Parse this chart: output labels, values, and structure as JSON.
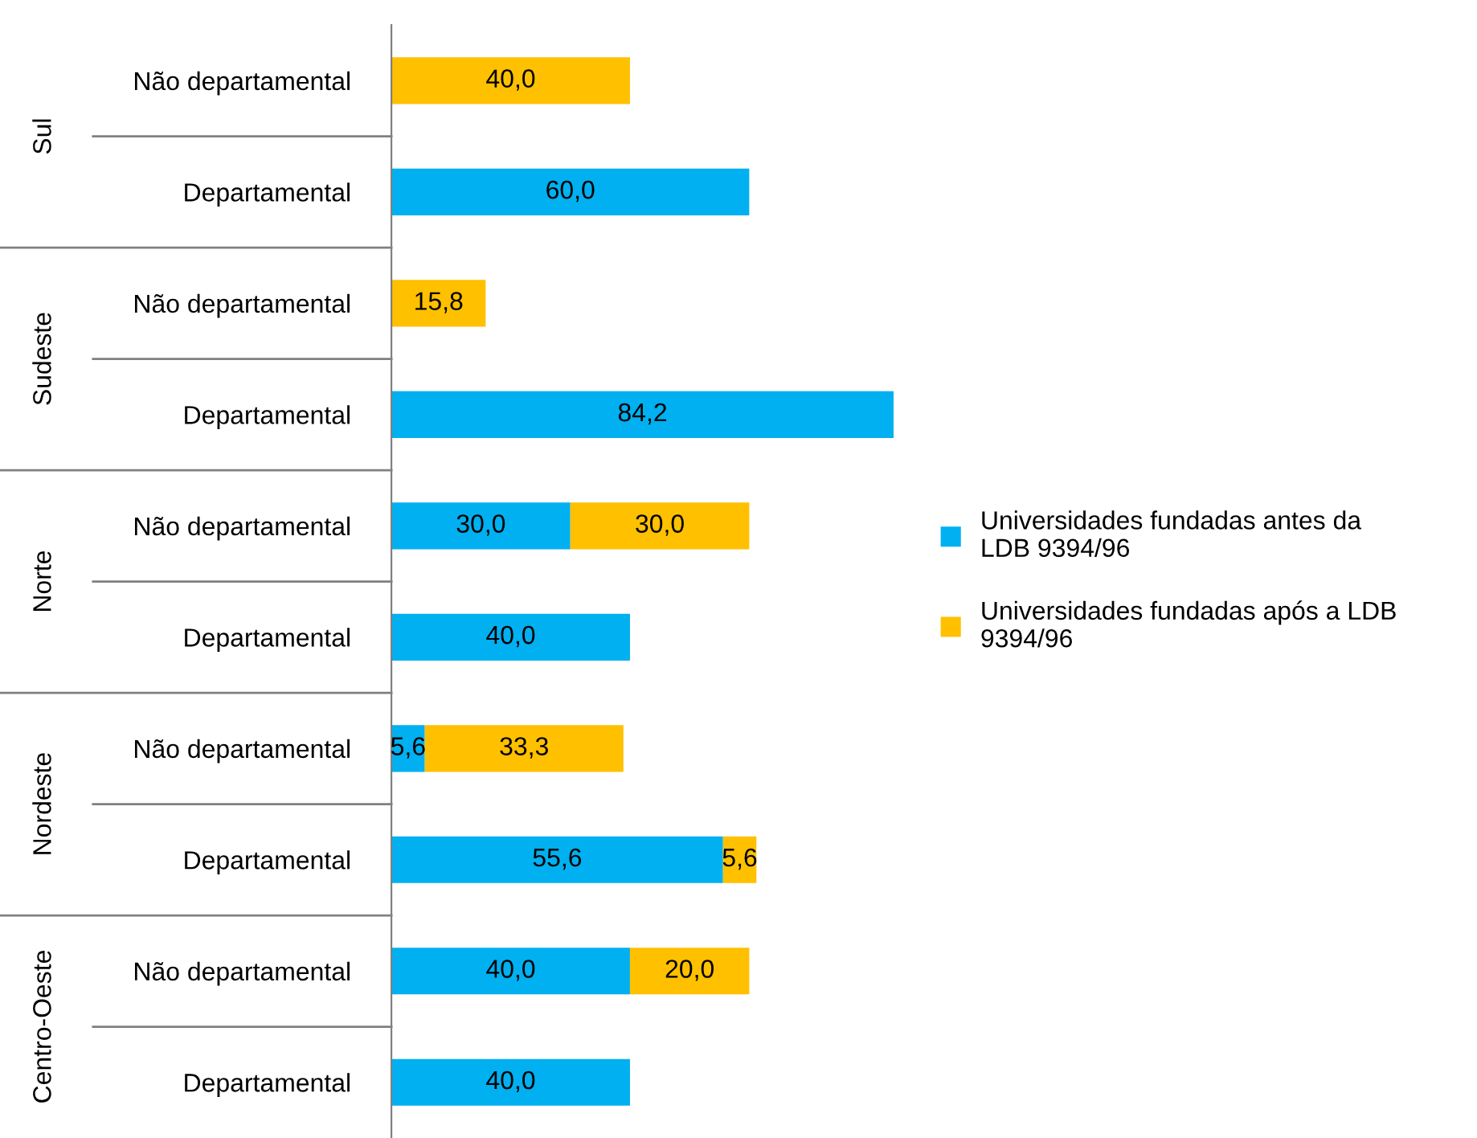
{
  "chart_data": {
    "type": "bar",
    "orientation": "horizontal",
    "stacked": true,
    "categories": [
      "Não departamental",
      "Departamental",
      "Não departamental",
      "Departamental",
      "Não departamental",
      "Departamental",
      "Não departamental",
      "Departamental",
      "Não departamental",
      "Departamental"
    ],
    "annotations": [
      "Sul",
      "Sudeste",
      "Norte",
      "Nordeste",
      "Centro-Oeste"
    ],
    "series": [
      {
        "name": "Universidades fundadas antes da LDB 9394/96",
        "color": "#00b0f0",
        "values": [
          null,
          60.0,
          null,
          84.2,
          30.0,
          40.0,
          5.6,
          55.6,
          40.0,
          40.0
        ],
        "value_labels": [
          null,
          "60,0",
          null,
          "84,2",
          "30,0",
          "40,0",
          "5,6",
          "55,6",
          "40,0",
          "40,0"
        ]
      },
      {
        "name": "Universidades fundadas após a LDB 9394/96",
        "color": "#ffc000",
        "values": [
          40.0,
          null,
          15.8,
          null,
          30.0,
          null,
          33.3,
          5.6,
          20.0,
          null
        ],
        "value_labels": [
          "40,0",
          null,
          "15,8",
          null,
          "30,0",
          null,
          "33,3",
          "5,6",
          "20,0",
          null
        ]
      }
    ],
    "legend": "right",
    "grid": false
  }
}
